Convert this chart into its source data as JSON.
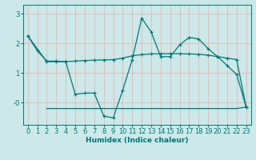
{
  "xlabel": "Humidex (Indice chaleur)",
  "bg_color": "#cce8e8",
  "grid_color": "#e8b4b4",
  "line_color": "#007878",
  "xlim": [
    -0.5,
    23.5
  ],
  "ylim": [
    -0.75,
    3.3
  ],
  "ytick_vals": [
    0,
    1,
    2,
    3
  ],
  "ytick_labels": [
    "-0",
    "1",
    "2",
    "3"
  ],
  "xtick_vals": [
    0,
    1,
    2,
    3,
    4,
    5,
    6,
    7,
    8,
    9,
    10,
    11,
    12,
    13,
    14,
    15,
    16,
    17,
    18,
    19,
    20,
    21,
    22,
    23
  ],
  "line1_x": [
    0,
    1,
    2,
    3,
    4,
    5,
    6,
    7,
    8,
    9,
    10,
    11,
    12,
    13,
    14,
    15,
    16,
    17,
    18,
    19,
    20,
    21,
    22,
    23
  ],
  "line1_y": [
    2.25,
    1.75,
    1.4,
    1.4,
    1.38,
    0.28,
    0.32,
    0.32,
    -0.45,
    -0.52,
    0.42,
    1.45,
    2.85,
    2.38,
    1.55,
    1.55,
    1.95,
    2.2,
    2.15,
    1.82,
    1.55,
    1.25,
    0.95,
    -0.15
  ],
  "line2_x": [
    0,
    2,
    3,
    4,
    5,
    6,
    7,
    8,
    9,
    10,
    11,
    12,
    13,
    14,
    15,
    16,
    17,
    18,
    19,
    20,
    21,
    22,
    23
  ],
  "line2_y": [
    2.25,
    1.38,
    1.38,
    1.38,
    1.4,
    1.42,
    1.43,
    1.44,
    1.45,
    1.5,
    1.58,
    1.62,
    1.64,
    1.65,
    1.65,
    1.65,
    1.64,
    1.63,
    1.6,
    1.55,
    1.5,
    1.45,
    -0.15
  ],
  "line3_x": [
    2,
    3,
    4,
    5,
    6,
    7,
    8,
    9,
    10,
    11,
    12,
    13,
    14,
    15,
    16,
    17,
    18,
    19,
    20,
    21,
    22,
    23
  ],
  "line3_y": [
    -0.2,
    -0.2,
    -0.2,
    -0.2,
    -0.2,
    -0.2,
    -0.2,
    -0.2,
    -0.2,
    -0.2,
    -0.2,
    -0.2,
    -0.2,
    -0.2,
    -0.2,
    -0.2,
    -0.2,
    -0.2,
    -0.2,
    -0.2,
    -0.2,
    -0.15
  ]
}
